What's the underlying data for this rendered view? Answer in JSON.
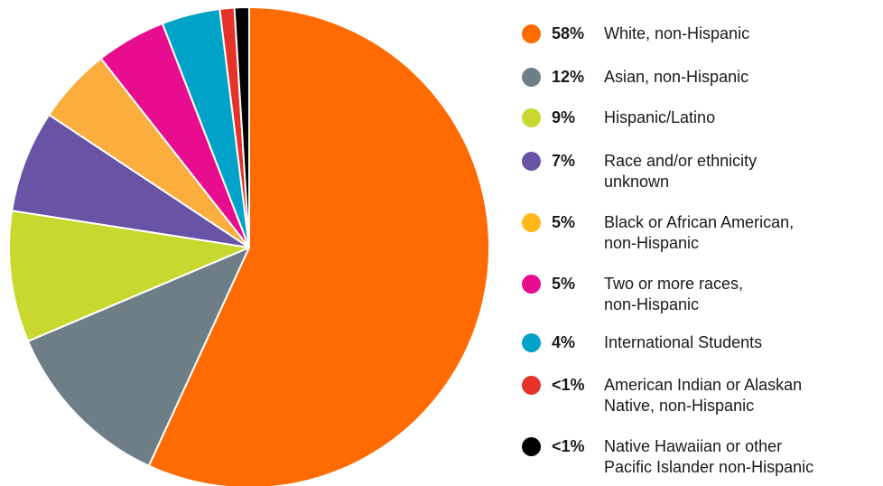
{
  "chart_data": {
    "type": "pie",
    "title": "",
    "start_angle_deg": 0,
    "direction": "clockwise",
    "slices": [
      {
        "name": "White, non-Hispanic",
        "pct_label": "58%",
        "value": 58.0,
        "color": "#FF6B00"
      },
      {
        "name": "Asian, non-Hispanic",
        "pct_label": "12%",
        "value": 12.0,
        "color": "#6E7E87"
      },
      {
        "name": "Hispanic/Latino",
        "pct_label": "9%",
        "value": 9.0,
        "color": "#C7D82F"
      },
      {
        "name": "Race and/or ethnicity unknown",
        "pct_label": "7%",
        "value": 7.0,
        "color": "#6853A4"
      },
      {
        "name": "Black or African American, non-Hispanic",
        "pct_label": "5%",
        "value": 5.2,
        "color": "#FBAD3E"
      },
      {
        "name": "Two or more races, non-Hispanic",
        "pct_label": "5%",
        "value": 4.8,
        "color": "#E80C8F"
      },
      {
        "name": "International Students",
        "pct_label": "4%",
        "value": 4.0,
        "color": "#00A3C7"
      },
      {
        "name": "American Indian or Alaskan Native, non-Hispanic",
        "pct_label": "<1%",
        "value": 1.0,
        "color": "#E5322A"
      },
      {
        "name": "Native Hawaiian or other Pacific Islander non-Hispanic",
        "pct_label": "<1%",
        "value": 1.0,
        "color": "#000000"
      }
    ]
  },
  "legend": {
    "items": [
      {
        "pct": "58%",
        "line1": "White, non-Hispanic",
        "line2": "",
        "color": "#FF6B00",
        "legend_color": "#FF6B00"
      },
      {
        "pct": "12%",
        "line1": "Asian, non-Hispanic",
        "line2": "",
        "color": "#6E7E87",
        "legend_color": "#6E7E87"
      },
      {
        "pct": "9%",
        "line1": "Hispanic/Latino",
        "line2": "",
        "color": "#C7D82F",
        "legend_color": "#C7D82F"
      },
      {
        "pct": "7%",
        "line1": "Race and/or ethnicity",
        "line2": "unknown",
        "color": "#6853A4",
        "legend_color": "#6853A4"
      },
      {
        "pct": "5%",
        "line1": "Black or African American,",
        "line2": "non-Hispanic",
        "color": "#FBAD3E",
        "legend_color": "#FFB81C"
      },
      {
        "pct": "5%",
        "line1": "Two or more races,",
        "line2": "non-Hispanic",
        "color": "#E80C8F",
        "legend_color": "#E80C8F"
      },
      {
        "pct": "4%",
        "line1": "International Students",
        "line2": "",
        "color": "#00A3C7",
        "legend_color": "#00A3C7"
      },
      {
        "pct": "<1%",
        "line1": "American Indian or Alaskan",
        "line2": "Native, non-Hispanic",
        "color": "#E5322A",
        "legend_color": "#E5322A"
      },
      {
        "pct": "<1%",
        "line1": "Native Hawaiian or other",
        "line2": "Pacific Islander non-Hispanic",
        "color": "#000000",
        "legend_color": "#000000"
      }
    ]
  }
}
